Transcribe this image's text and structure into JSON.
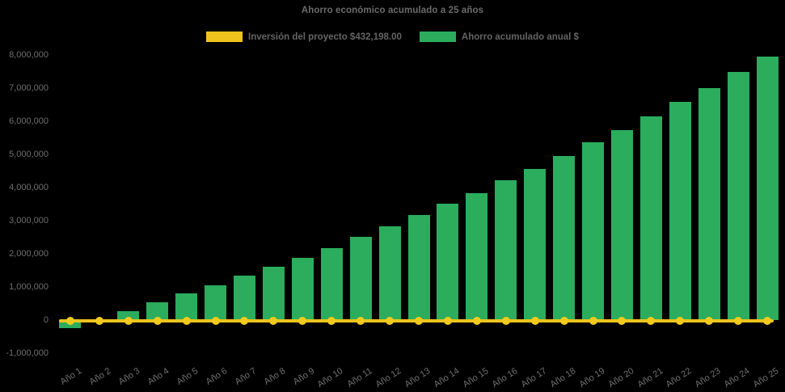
{
  "title": "Ahorro económico acumulado a 25 años",
  "legend": {
    "items": [
      {
        "id": "inversion",
        "label": "Inversión del proyecto $432,198.00",
        "color": "#EDC41D"
      },
      {
        "id": "ahorro",
        "label": "Ahorro acumulado anual $",
        "color": "#2BAD5D"
      }
    ]
  },
  "colors": {
    "background": "#000000",
    "bar_green": "#2BAD5D",
    "line_yellow": "#EDC41D",
    "dot_yellow": "#F2CA1E",
    "text_gray": "#6b6b6b"
  },
  "chart_data": {
    "type": "bar",
    "title": "Ahorro económico acumulado a 25 años",
    "categories": [
      "Año 1",
      "Año 2",
      "Año 3",
      "Año 4",
      "Año 5",
      "Año 6",
      "Año 7",
      "Año 8",
      "Año 9",
      "Año 10",
      "Año 11",
      "Año 12",
      "Año 13",
      "Año 14",
      "Año 15",
      "Año 16",
      "Año 17",
      "Año 18",
      "Año 19",
      "Año 20",
      "Año 21",
      "Año 22",
      "Año 23",
      "Año 24",
      "Año 25"
    ],
    "series": [
      {
        "name": "Ahorro acumulado anual $",
        "type": "bar",
        "color": "#2BAD5D",
        "values": [
          -250000,
          -40000,
          260000,
          540000,
          790000,
          1040000,
          1330000,
          1600000,
          1870000,
          2180000,
          2500000,
          2820000,
          3160000,
          3500000,
          3830000,
          4210000,
          4560000,
          4950000,
          5360000,
          5740000,
          6150000,
          6580000,
          7010000,
          7490000,
          7960000
        ]
      },
      {
        "name": "Inversión del proyecto $432,198.00",
        "type": "line",
        "color": "#EDC41D",
        "investment_value": 432198.0,
        "plotted_at": 0,
        "note": "flat horizontal line with round markers drawn at the zero baseline across all 25 years"
      }
    ],
    "xlabel": "",
    "ylabel": "",
    "ylim": [
      -1000000,
      8000000
    ],
    "y_tick_values": [
      8000000,
      7000000,
      6000000,
      5000000,
      4000000,
      3000000,
      2000000,
      1000000,
      0,
      -1000000
    ],
    "y_tick_labels": [
      "8,000,000",
      "7,000,000",
      "6,000,000",
      "5,000,000",
      "4,000,000",
      "3,000,000",
      "2,000,000",
      "1,000,000",
      "0",
      "-1,000,000"
    ],
    "grid": false,
    "legend_position": "top"
  }
}
